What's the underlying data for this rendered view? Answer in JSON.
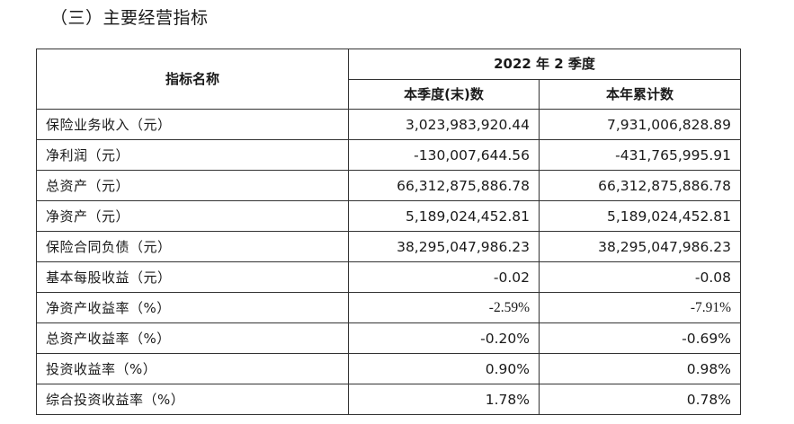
{
  "section_title": "（三）主要经营指标",
  "table": {
    "header": {
      "name": "指标名称",
      "period": "2022 年 2 季度",
      "col_quarter": "本季度(末)数",
      "col_ytd": "本年累计数"
    },
    "rows": [
      {
        "label": "保险业务收入（元）",
        "quarter": "3,023,983,920.44",
        "ytd": "7,931,006,828.89"
      },
      {
        "label": "净利润（元）",
        "quarter": "-130,007,644.56",
        "ytd": "-431,765,995.91"
      },
      {
        "label": "总资产（元）",
        "quarter": "66,312,875,886.78",
        "ytd": "66,312,875,886.78"
      },
      {
        "label": "净资产（元）",
        "quarter": "5,189,024,452.81",
        "ytd": "5,189,024,452.81"
      },
      {
        "label": "保险合同负债（元）",
        "quarter": "38,295,047,986.23",
        "ytd": "38,295,047,986.23"
      },
      {
        "label": "基本每股收益（元）",
        "quarter": "-0.02",
        "ytd": "-0.08"
      },
      {
        "label": "净资产收益率（%）",
        "quarter": "-2.59%",
        "ytd": "-7.91%"
      },
      {
        "label": "总资产收益率（%）",
        "quarter": "-0.20%",
        "ytd": "-0.69%"
      },
      {
        "label": "投资收益率（%）",
        "quarter": "0.90%",
        "ytd": "0.98%"
      },
      {
        "label": "综合投资收益率（%）",
        "quarter": "1.78%",
        "ytd": "0.78%"
      }
    ]
  }
}
